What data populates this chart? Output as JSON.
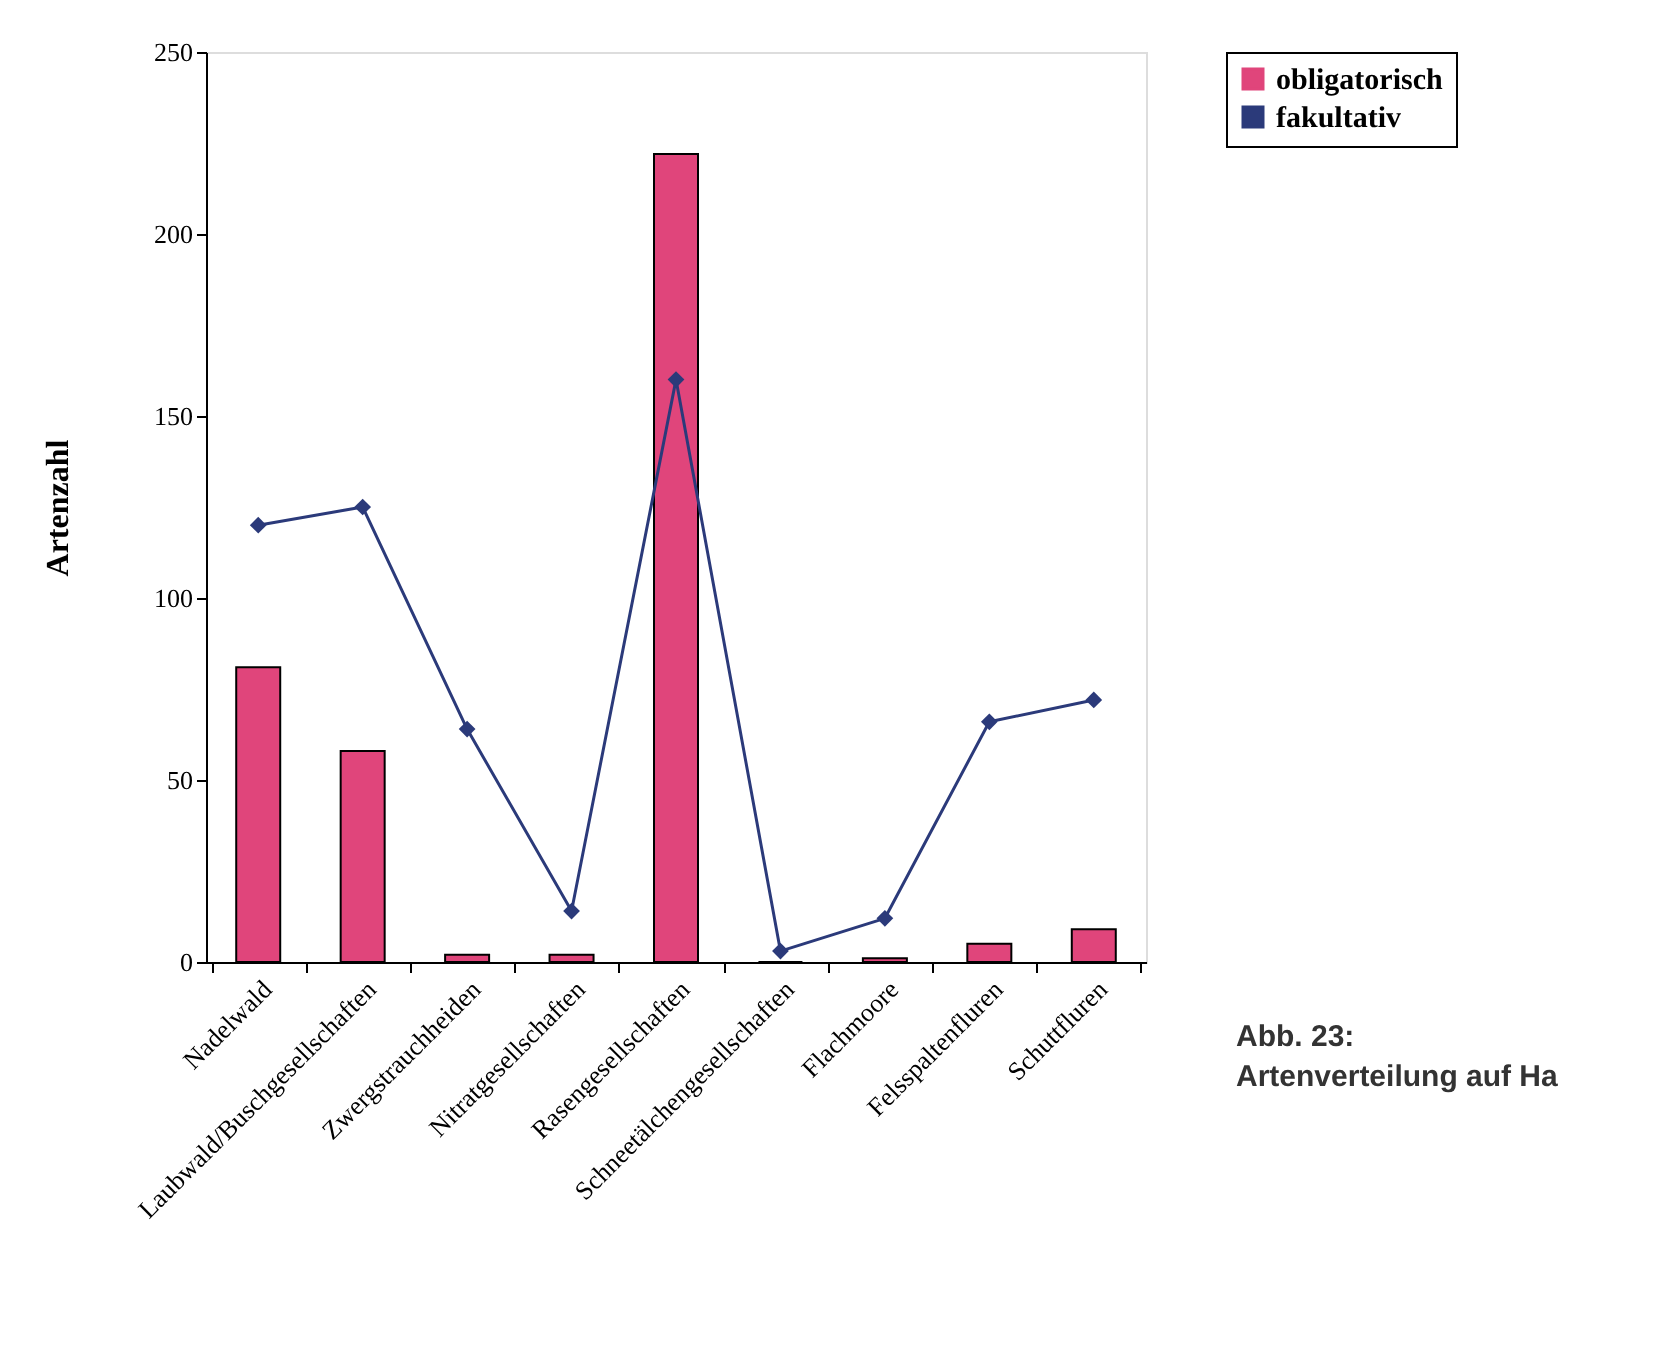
{
  "chart_data": {
    "type": "bar",
    "ylabel": "Artenzahl",
    "categories": [
      "Nadelwald",
      "Laubwald/Buschgesellschaften",
      "Zwergstrauchheiden",
      "Nitratgesellschaften",
      "Rasengesellschaften",
      "Schneetälchengesellschaften",
      "Flachmoore",
      "Felsspaltenfluren",
      "Schuttfluren"
    ],
    "series": [
      {
        "name": "obligatorisch",
        "color": "#e0457b",
        "values": [
          81,
          58,
          2,
          2,
          222,
          0,
          1,
          5,
          9
        ]
      },
      {
        "name": "fakultativ",
        "type": "line",
        "color": "#2b3a7a",
        "values": [
          120,
          125,
          64,
          14,
          160,
          3,
          12,
          66,
          72
        ]
      }
    ],
    "ylim": [
      0,
      250
    ],
    "yticks": [
      0,
      50,
      100,
      150,
      200,
      250
    ],
    "grid": false,
    "legend": "right",
    "marker": "diamond",
    "line_style": "solid",
    "annotations": [
      "Abb. 23:",
      "Artenverteilung auf Ha"
    ]
  }
}
